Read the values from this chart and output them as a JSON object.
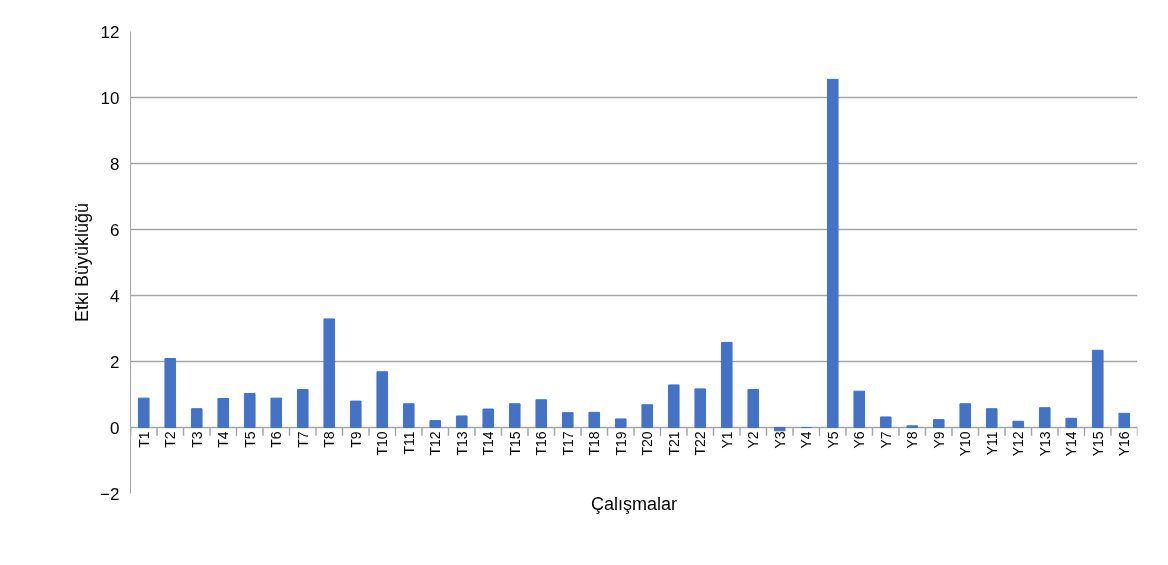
{
  "chart_data": {
    "type": "bar",
    "xlabel": "Çalışmalar",
    "ylabel": "Etki Büyüklüğü",
    "categories": [
      "T1",
      "T2",
      "T3",
      "T4",
      "T5",
      "T6",
      "T7",
      "T8",
      "T9",
      "T10",
      "T11",
      "T12",
      "T13",
      "T14",
      "T15",
      "T16",
      "T17",
      "T18",
      "T19",
      "T20",
      "T21",
      "T22",
      "Y1",
      "Y2",
      "Y3",
      "Y4",
      "Y5",
      "Y6",
      "Y7",
      "Y8",
      "Y9",
      "Y10",
      "Y11",
      "Y12",
      "Y13",
      "Y14",
      "Y15",
      "Y16"
    ],
    "values": [
      0.89,
      2.09,
      0.57,
      0.88,
      1.03,
      0.89,
      1.15,
      3.29,
      0.8,
      1.69,
      0.72,
      0.21,
      0.35,
      0.56,
      0.72,
      0.84,
      0.45,
      0.46,
      0.26,
      0.69,
      1.29,
      1.17,
      2.58,
      1.15,
      -0.1,
      0,
      10.55,
      1.1,
      0.32,
      0.05,
      0.24,
      0.72,
      0.57,
      0.19,
      0.6,
      0.28,
      2.34,
      0.43
    ],
    "color": "#4472c4",
    "ylim": [
      -2,
      12
    ],
    "yticks": [
      -2,
      0,
      2,
      4,
      6,
      8,
      10,
      12
    ],
    "grid": "y"
  }
}
